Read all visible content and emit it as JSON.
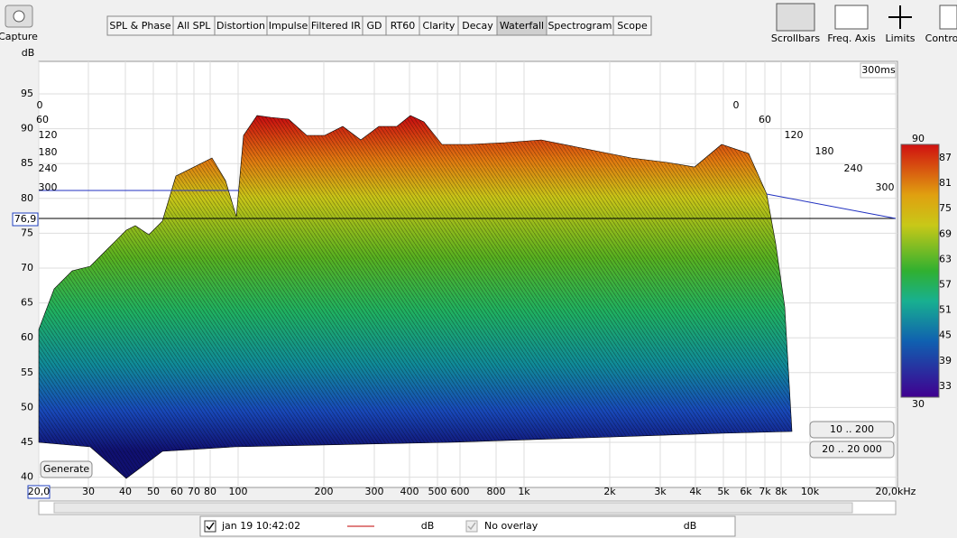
{
  "toolbar": {
    "capture": "Capture",
    "tabs": [
      "SPL & Phase",
      "All SPL",
      "Distortion",
      "Impulse",
      "Filtered IR",
      "GD",
      "RT60",
      "Clarity",
      "Decay",
      "Waterfall",
      "Spectrogram",
      "Scope"
    ],
    "active_tab": 9,
    "tools": [
      "Scrollbars",
      "Freq. Axis",
      "Limits",
      "Contro"
    ]
  },
  "plot": {
    "y_unit": "dB",
    "y_labels": [
      "95",
      "90",
      "85",
      "80",
      "75",
      "70",
      "65",
      "60",
      "55",
      "50",
      "45",
      "40"
    ],
    "x_labels": [
      "20,0",
      "30",
      "40",
      "50",
      "60",
      "70",
      "80",
      "100",
      "200",
      "300",
      "400",
      "500",
      "600",
      "800",
      "1k",
      "2k",
      "3k",
      "4k",
      "5k",
      "6k",
      "7k",
      "8k",
      "10k",
      "20,0kHz"
    ],
    "time_labels_left": [
      "0",
      "60",
      "120",
      "180",
      "240",
      "300"
    ],
    "time_labels_right": [
      "0",
      "60",
      "120",
      "180",
      "240",
      "300"
    ],
    "time_span": "300ms",
    "cursor_value": "76,9",
    "buttons": {
      "range_low": "10 .. 200",
      "range_full": "20 .. 20 000",
      "generate": "Generate"
    }
  },
  "color_scale": {
    "max": "90",
    "labels": [
      "87",
      "81",
      "75",
      "69",
      "63",
      "57",
      "51",
      "45",
      "39",
      "33"
    ],
    "min": "30"
  },
  "legend": {
    "measurement": "jan 19 10:42:02",
    "unit": "dB",
    "overlay": "No overlay",
    "overlay_unit": "dB"
  }
}
